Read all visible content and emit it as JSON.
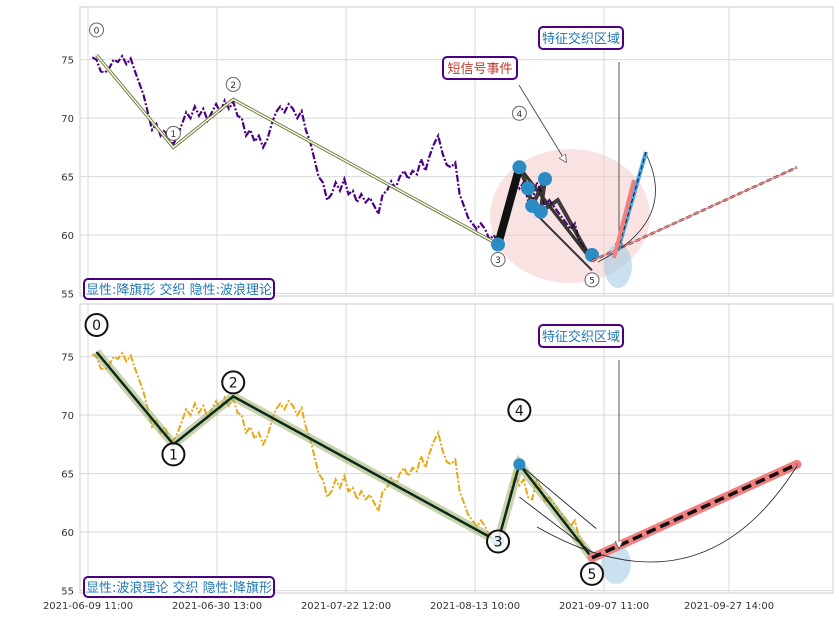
{
  "chart_data": [
    {
      "type": "line",
      "panel": "top",
      "ylim": [
        54.8,
        79.5
      ],
      "y_ticks": [
        55,
        60,
        65,
        70,
        75
      ],
      "x_ticks": [
        "2021-06-09 11:00",
        "2021-06-30 13:00",
        "2021-07-22 12:00",
        "2021-08-13 10:00",
        "2021-09-07 11:00",
        "2021-09-27 14:00"
      ],
      "grid": true,
      "price_color": "#4b0082",
      "price_series": [
        [
          0.5,
          75.2
        ],
        [
          1,
          75.0
        ],
        [
          1.5,
          74.0
        ],
        [
          2,
          73.9
        ],
        [
          2.5,
          74.3
        ],
        [
          3,
          75.0
        ],
        [
          3.5,
          74.8
        ],
        [
          4,
          75.3
        ],
        [
          4.5,
          74.6
        ],
        [
          5,
          75.1
        ],
        [
          5.5,
          74.0
        ],
        [
          6,
          73.0
        ],
        [
          6.5,
          72.0
        ],
        [
          7,
          70.5
        ],
        [
          7.5,
          69.0
        ],
        [
          8,
          69.5
        ],
        [
          8.5,
          68.5
        ],
        [
          9,
          69.0
        ],
        [
          9.5,
          68.0
        ],
        [
          10,
          67.8
        ],
        [
          10.5,
          68.5
        ],
        [
          11,
          69.5
        ],
        [
          11.5,
          70.5
        ],
        [
          12,
          70.0
        ],
        [
          12.5,
          71.0
        ],
        [
          13,
          70.2
        ],
        [
          13.5,
          70.8
        ],
        [
          14,
          69.8
        ],
        [
          14.5,
          70.5
        ],
        [
          15,
          71.2
        ],
        [
          15.5,
          70.5
        ],
        [
          16,
          71.5
        ],
        [
          16.5,
          70.8
        ],
        [
          17,
          71.4
        ],
        [
          17.5,
          70.2
        ],
        [
          18,
          70.0
        ],
        [
          18.5,
          68.5
        ],
        [
          19,
          69.0
        ],
        [
          19.5,
          68.0
        ],
        [
          20,
          68.5
        ],
        [
          20.5,
          67.5
        ],
        [
          21,
          68.2
        ],
        [
          21.5,
          69.5
        ],
        [
          22,
          70.5
        ],
        [
          22.5,
          71.0
        ],
        [
          23,
          70.5
        ],
        [
          23.5,
          71.2
        ],
        [
          24,
          70.8
        ],
        [
          24.5,
          70.0
        ],
        [
          25,
          70.6
        ],
        [
          25.5,
          69.0
        ],
        [
          26,
          68.0
        ],
        [
          26.5,
          66.5
        ],
        [
          27,
          65.0
        ],
        [
          27.5,
          64.5
        ],
        [
          28,
          63.0
        ],
        [
          28.5,
          63.5
        ],
        [
          29,
          64.5
        ],
        [
          29.5,
          63.8
        ],
        [
          30,
          64.8
        ],
        [
          30.5,
          63.5
        ],
        [
          31,
          63.8
        ],
        [
          31.5,
          62.8
        ],
        [
          32,
          63.5
        ],
        [
          32.5,
          62.8
        ],
        [
          33,
          63.2
        ],
        [
          33.5,
          62.5
        ],
        [
          34,
          61.8
        ],
        [
          34.5,
          63.5
        ],
        [
          35,
          63.8
        ],
        [
          35.5,
          64.6
        ],
        [
          36,
          64.0
        ],
        [
          36.5,
          65.0
        ],
        [
          37,
          65.5
        ],
        [
          37.5,
          64.8
        ],
        [
          38,
          65.5
        ],
        [
          38.5,
          65.2
        ],
        [
          39,
          66.5
        ],
        [
          39.5,
          65.5
        ],
        [
          40,
          66.8
        ],
        [
          40.5,
          67.8
        ],
        [
          41,
          68.5
        ],
        [
          41.5,
          67.0
        ],
        [
          42,
          66.0
        ],
        [
          42.5,
          65.8
        ],
        [
          43,
          66.2
        ],
        [
          43.5,
          63.5
        ],
        [
          44,
          62.5
        ],
        [
          44.5,
          61.5
        ],
        [
          45,
          61.0
        ],
        [
          45.5,
          60.5
        ],
        [
          46,
          61.0
        ],
        [
          46.5,
          60.5
        ],
        [
          47,
          59.6
        ],
        [
          47.5,
          60.0
        ],
        [
          48,
          59.4
        ],
        [
          48.5,
          60.5
        ],
        [
          49,
          62.0
        ],
        [
          49.5,
          63.5
        ],
        [
          50,
          65.0
        ],
        [
          50.5,
          64.0
        ],
        [
          51,
          64.5
        ],
        [
          51.5,
          63.0
        ],
        [
          52,
          62.8
        ],
        [
          52.5,
          64.5
        ],
        [
          53,
          63.8
        ],
        [
          53.5,
          62.5
        ],
        [
          54,
          63.0
        ],
        [
          54.5,
          62.5
        ],
        [
          55,
          62.0
        ],
        [
          55.5,
          61.5
        ],
        [
          56,
          61.0
        ],
        [
          56.5,
          60.5
        ],
        [
          57,
          61.0
        ],
        [
          57.5,
          59.5
        ],
        [
          58,
          59.0
        ],
        [
          58.5,
          58.5
        ]
      ],
      "wave_points": [
        {
          "label": "0",
          "x": 1,
          "y": 75.4
        },
        {
          "label": "1",
          "x": 10,
          "y": 67.5
        },
        {
          "label": "2",
          "x": 17,
          "y": 71.6
        },
        {
          "label": "3",
          "x": 48,
          "y": 59.2
        },
        {
          "label": "4",
          "x": 50.5,
          "y": 65.8
        },
        {
          "label": "5",
          "x": 59,
          "y": 57.8
        }
      ],
      "trend_end": [
        83,
        65.8
      ],
      "annotations": {
        "feature_zone": "特征交织区域",
        "short_signal": "短信号事件",
        "pattern_caption": "显性:降旗形 交织 隐性:波浪理论"
      }
    },
    {
      "type": "line",
      "panel": "bottom",
      "ylim": [
        54.8,
        79.5
      ],
      "y_ticks": [
        55,
        60,
        65,
        70,
        75
      ],
      "x_ticks": [
        "2021-06-09 11:00",
        "2021-06-30 13:00",
        "2021-07-22 12:00",
        "2021-08-13 10:00",
        "2021-09-07 11:00",
        "2021-09-27 14:00"
      ],
      "grid": true,
      "price_color": "#e6a817",
      "wave_points": [
        {
          "label": "0",
          "x": 1,
          "y": 75.4
        },
        {
          "label": "1",
          "x": 10,
          "y": 67.5
        },
        {
          "label": "2",
          "x": 17,
          "y": 71.6
        },
        {
          "label": "3",
          "x": 48,
          "y": 59.2
        },
        {
          "label": "4",
          "x": 50.5,
          "y": 65.8
        },
        {
          "label": "5",
          "x": 59,
          "y": 57.8
        }
      ],
      "trend_end": [
        83,
        65.8
      ],
      "annotations": {
        "feature_zone": "特征交织区域",
        "pattern_caption": "显性:波浪理论 交织 隐性:降旗形"
      }
    }
  ]
}
